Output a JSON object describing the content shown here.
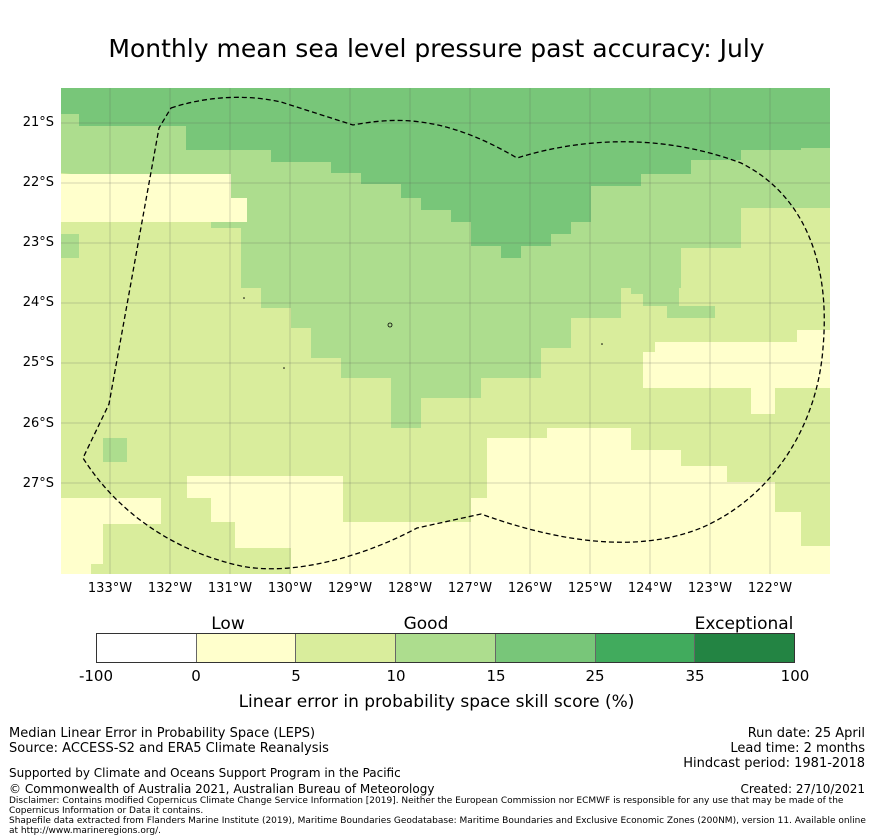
{
  "title": "Monthly mean sea level pressure past accuracy: July",
  "map": {
    "lat_labels": [
      "21°S",
      "22°S",
      "23°S",
      "24°S",
      "25°S",
      "26°S",
      "27°S"
    ],
    "lon_labels": [
      "133°W",
      "132°W",
      "131°W",
      "130°W",
      "129°W",
      "128°W",
      "127°W",
      "126°W",
      "125°W",
      "124°W",
      "123°W",
      "122°W"
    ],
    "boundary": "dashed EEZ outline"
  },
  "colorbar": {
    "category_labels": [
      "Low",
      "Good",
      "Exceptional"
    ],
    "ticks": [
      "-100",
      "0",
      "5",
      "10",
      "15",
      "25",
      "35",
      "100"
    ],
    "colors": [
      "#ffffff",
      "#ffffcc",
      "#d9ed9c",
      "#addd8e",
      "#78c679",
      "#41ab5d",
      "#238443"
    ],
    "label": "Linear error in probability space skill score (%)"
  },
  "footer": {
    "left": [
      "Median Linear Error in Probability Space (LEPS)",
      "Source: ACCESS-S2 and ERA5 Climate Reanalysis"
    ],
    "right": [
      "Run date: 25 April",
      "Lead time: 2 months",
      "Hindcast period: 1981-2018"
    ],
    "supported": "Supported by Climate and Oceans Support Program in the Pacific",
    "copyright": "© Commonwealth of Australia 2021, Australian Bureau of Meteorology",
    "created": "Created: 27/10/2021",
    "disclaimer": "Disclaimer: Contains modified Copernicus Climate Change Service Information [2019]. Neither the European Commission nor ECMWF is responsible for any use that may be made of the Copernicus Information or Data it contains.",
    "shapefile": "Shapefile data extracted from Flanders Marine Institute (2019), Maritime Boundaries Geodatabase: Maritime Boundaries and Exclusive Economic Zones (200NM), version 11. Available online at http://www.marineregions.org/."
  }
}
